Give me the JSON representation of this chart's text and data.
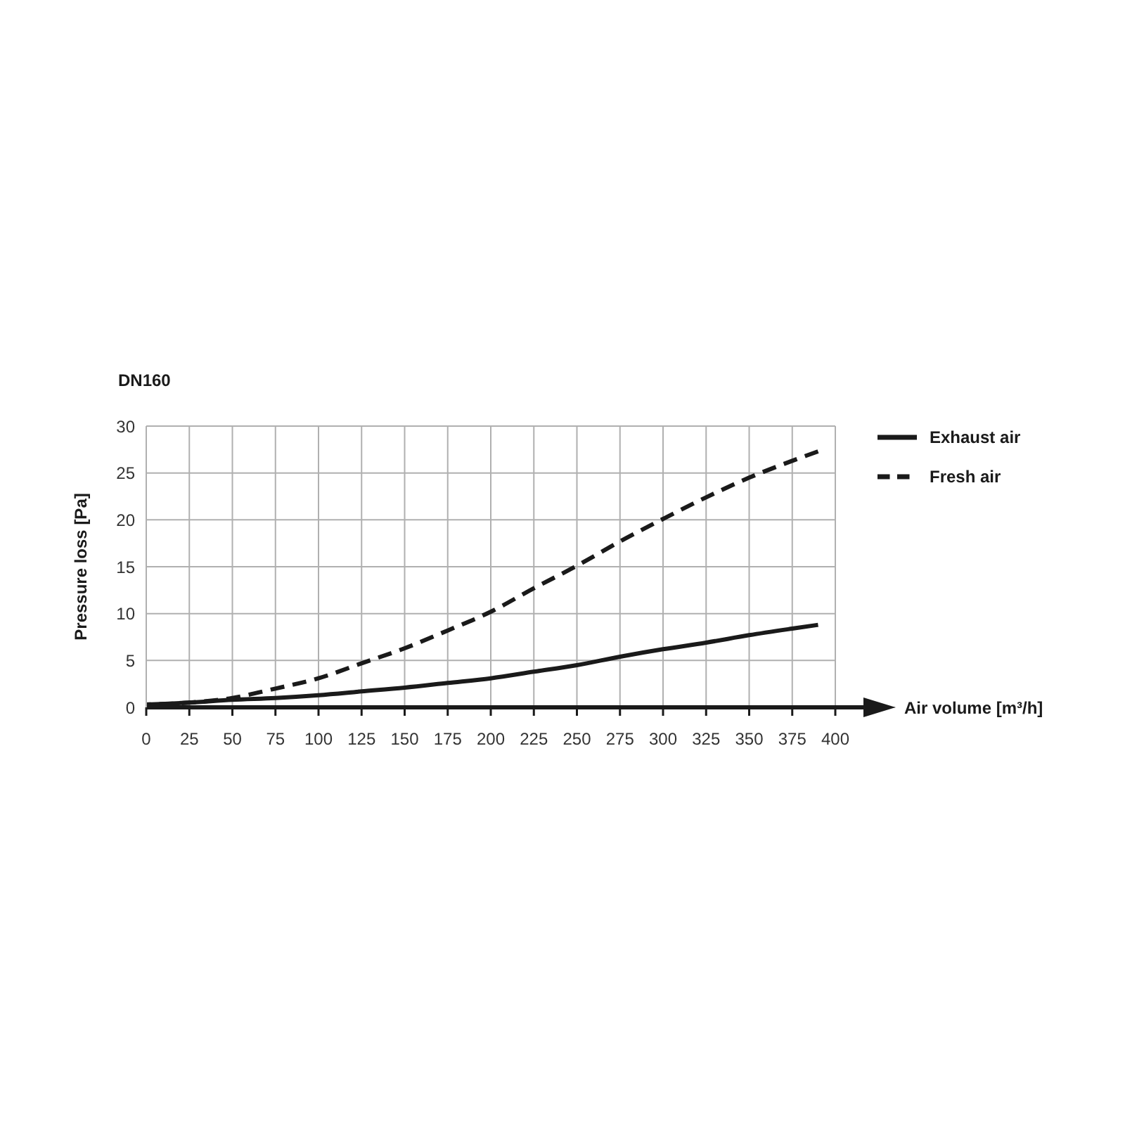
{
  "chart_data": {
    "type": "line",
    "title": "DN160",
    "xlabel": "Air volume [m³/h]",
    "ylabel": "Pressure loss [Pa]",
    "xlim": [
      0,
      400
    ],
    "xticks": [
      0,
      25,
      50,
      75,
      100,
      125,
      150,
      175,
      200,
      225,
      250,
      275,
      300,
      325,
      350,
      375,
      400
    ],
    "ylim": [
      0,
      30
    ],
    "yticks": [
      0,
      5,
      10,
      15,
      20,
      25,
      30
    ],
    "grid": true,
    "legend": "top right",
    "series": [
      {
        "name": "Exhaust air",
        "color": "#1a1a1a",
        "line_style": "solid",
        "x": [
          0,
          25,
          50,
          75,
          100,
          125,
          150,
          175,
          200,
          225,
          250,
          275,
          300,
          325,
          350,
          375,
          390
        ],
        "values": [
          0.3,
          0.5,
          0.8,
          1.0,
          1.3,
          1.7,
          2.1,
          2.6,
          3.1,
          3.8,
          4.5,
          5.4,
          6.2,
          6.9,
          7.7,
          8.4,
          8.8
        ]
      },
      {
        "name": "Fresh air",
        "color": "#1a1a1a",
        "line_style": "dashed",
        "x": [
          0,
          25,
          50,
          75,
          100,
          125,
          150,
          175,
          200,
          225,
          250,
          275,
          300,
          325,
          350,
          375,
          390
        ],
        "values": [
          0.3,
          0.5,
          1.0,
          2.0,
          3.1,
          4.7,
          6.3,
          8.2,
          10.2,
          12.7,
          15.1,
          17.7,
          20.1,
          22.4,
          24.5,
          26.3,
          27.3
        ]
      }
    ]
  }
}
